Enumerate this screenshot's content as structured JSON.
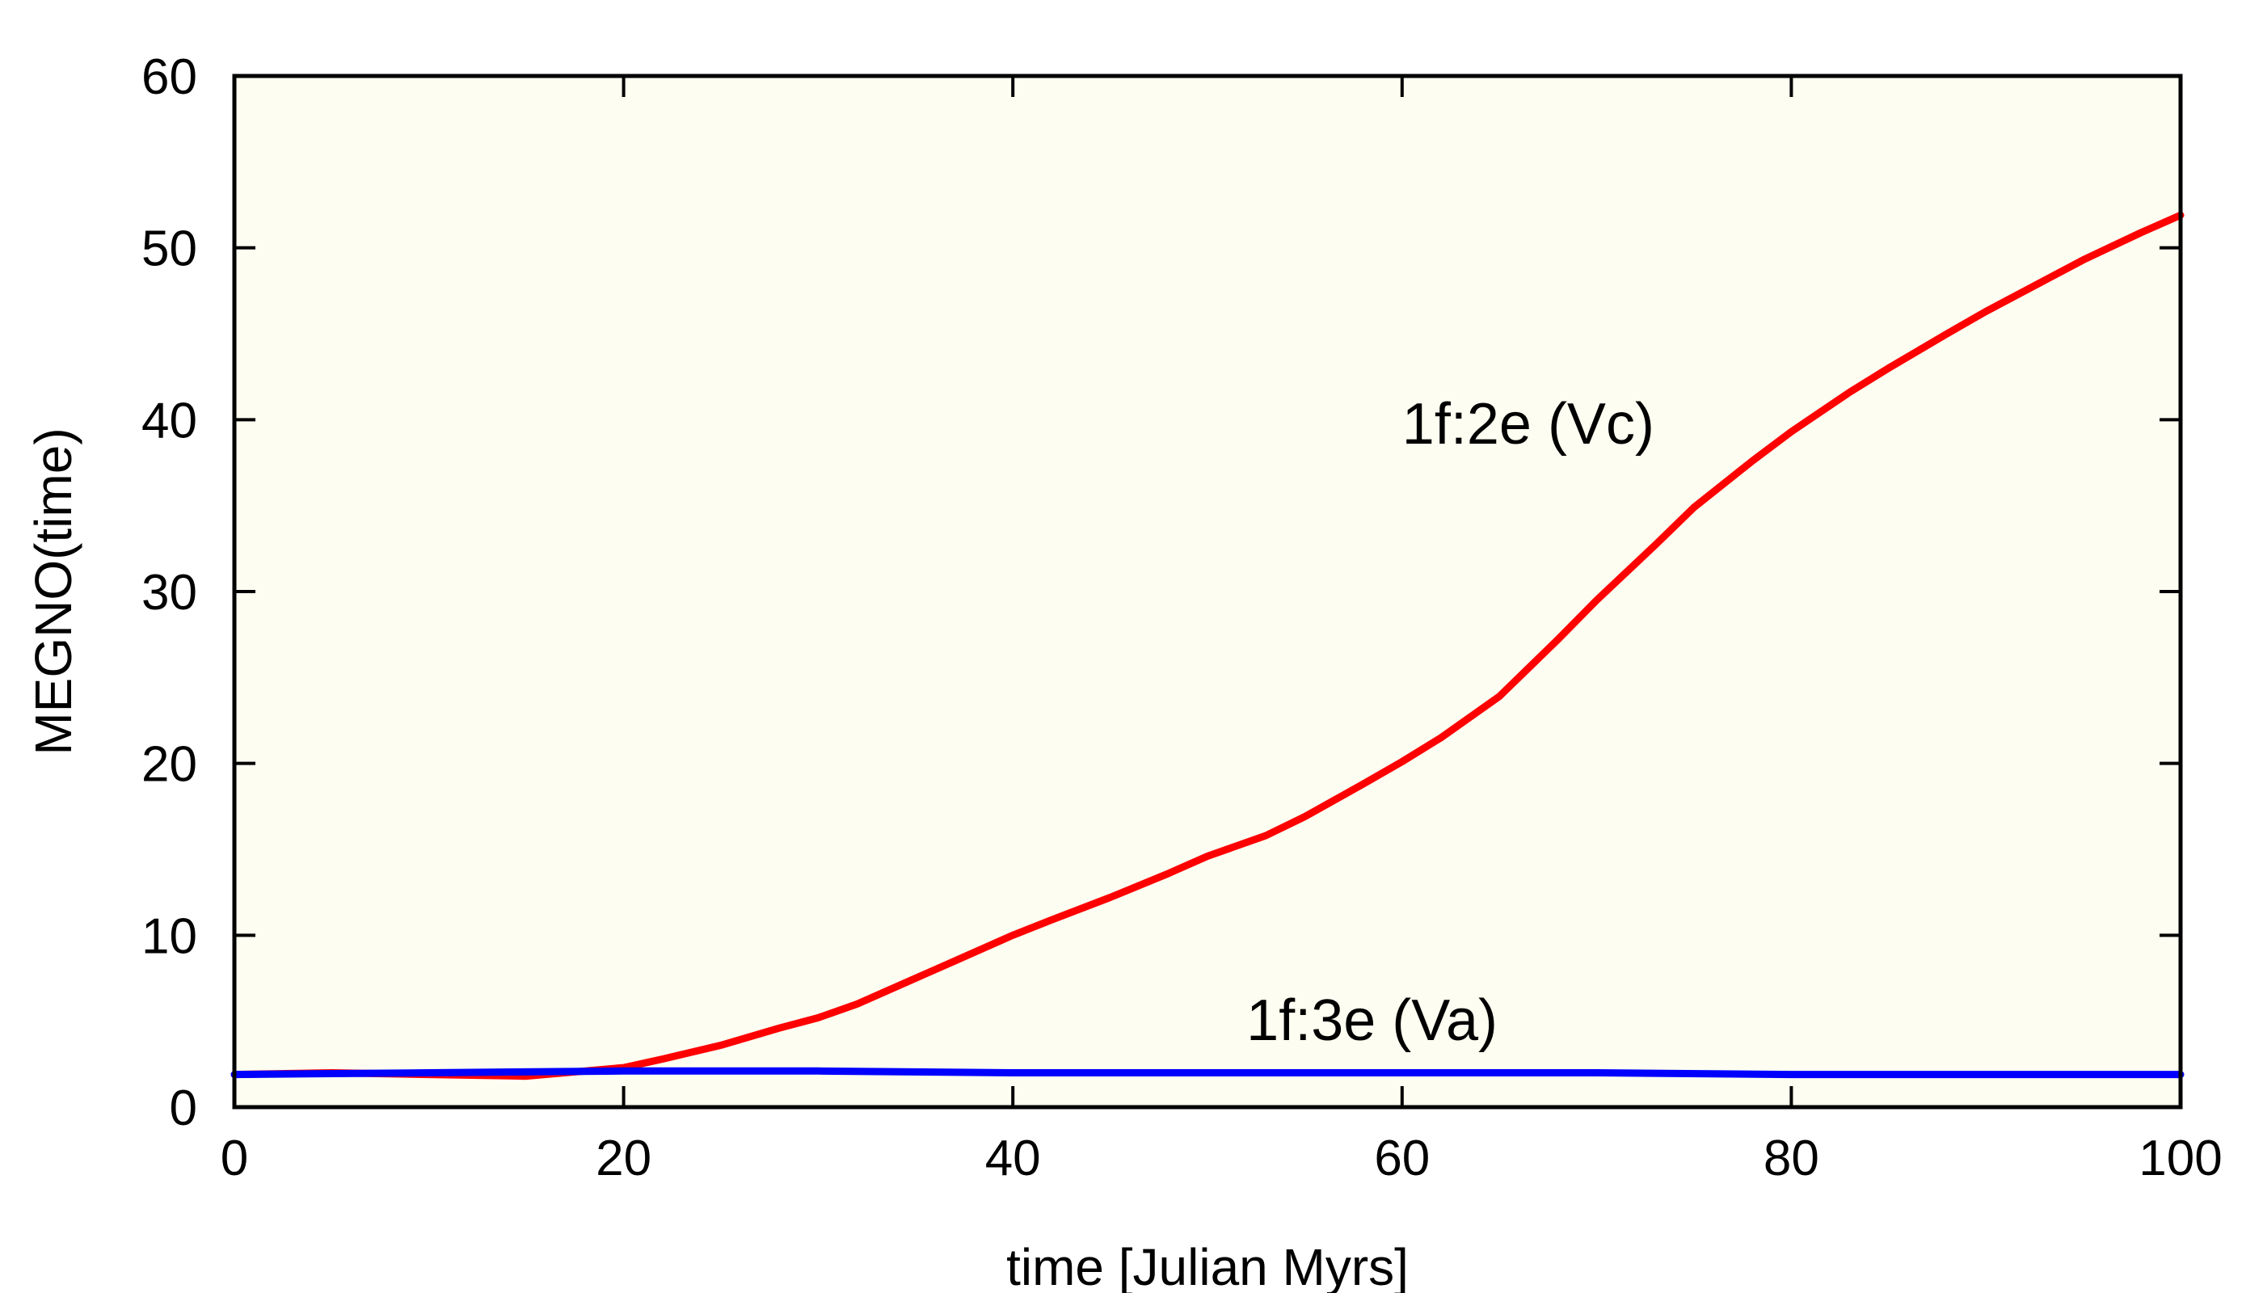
{
  "chart_data": {
    "type": "line",
    "title": "",
    "xlabel": "time [Julian Myrs]",
    "ylabel": "MEGNO(time)",
    "xlim": [
      0,
      100
    ],
    "ylim": [
      0,
      60
    ],
    "xticks": [
      0,
      20,
      40,
      60,
      80,
      100
    ],
    "yticks": [
      0,
      10,
      20,
      30,
      40,
      50,
      60
    ],
    "grid": false,
    "background_color": "#fdfdf1",
    "series": [
      {
        "name": "1f:2e (Vc)",
        "color": "#ff0000",
        "x": [
          0,
          5,
          10,
          15,
          20,
          22,
          25,
          28,
          30,
          32,
          35,
          37,
          40,
          42,
          45,
          48,
          50,
          53,
          55,
          58,
          60,
          62,
          65,
          68,
          70,
          73,
          75,
          78,
          80,
          83,
          85,
          88,
          90,
          93,
          95,
          98,
          100
        ],
        "y": [
          1.9,
          2.0,
          1.9,
          1.8,
          2.3,
          2.8,
          3.6,
          4.6,
          5.2,
          6.0,
          7.5,
          8.5,
          10.0,
          10.9,
          12.2,
          13.6,
          14.6,
          15.8,
          16.9,
          18.8,
          20.1,
          21.5,
          23.9,
          27.2,
          29.5,
          32.7,
          34.9,
          37.6,
          39.3,
          41.6,
          43.0,
          45.0,
          46.3,
          48.1,
          49.3,
          50.9,
          51.9
        ]
      },
      {
        "name": "1f:3e (Va)",
        "color": "#0000ff",
        "x": [
          0,
          10,
          20,
          30,
          40,
          50,
          60,
          70,
          80,
          90,
          100
        ],
        "y": [
          1.9,
          2.0,
          2.1,
          2.1,
          2.0,
          2.0,
          2.0,
          2.0,
          1.9,
          1.9,
          1.9
        ]
      }
    ],
    "annotations": [
      {
        "text": "1f:2e (Vc)",
        "x": 60,
        "y": 38.6
      },
      {
        "text": "1f:3e (Va)",
        "x": 52,
        "y": 3.9
      }
    ]
  }
}
